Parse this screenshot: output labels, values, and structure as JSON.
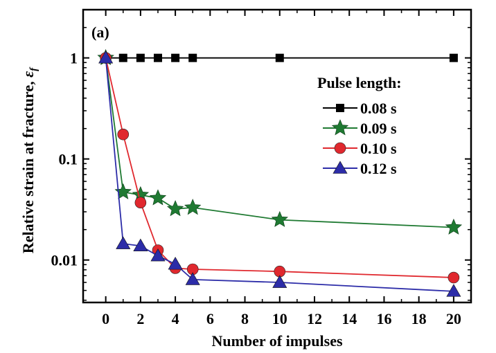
{
  "chart_data": {
    "type": "line",
    "panel_label": "(a)",
    "xlabel": "Number of impulses",
    "ylabel_main": "Relative strain at fracture, ",
    "ylabel_symbol": "ε",
    "ylabel_subscript": "f",
    "y_scale": "log",
    "xlim": [
      -1.3,
      21
    ],
    "ylim": [
      0.0038,
      3.0
    ],
    "x_ticks": [
      0,
      2,
      4,
      6,
      8,
      10,
      12,
      14,
      16,
      18,
      20
    ],
    "x_tick_labels": [
      "0",
      "2",
      "4",
      "6",
      "8",
      "10",
      "12",
      "14",
      "16",
      "18",
      "20"
    ],
    "y_ticks": [
      0.01,
      0.1,
      1
    ],
    "y_tick_labels": [
      "0.01",
      "0.1",
      "1"
    ],
    "legend_title": "Pulse length:",
    "legend_position": "right",
    "grid": false,
    "series": [
      {
        "name": "0.08 s",
        "color": "#000000",
        "marker": "square",
        "x": [
          0,
          1,
          2,
          3,
          4,
          5,
          10,
          20
        ],
        "y": [
          1,
          1,
          1,
          1,
          1,
          1,
          1,
          1
        ]
      },
      {
        "name": "0.09 s",
        "color": "#1f7a32",
        "marker": "star",
        "x": [
          0,
          1,
          2,
          3,
          4,
          5,
          10,
          20
        ],
        "y": [
          1,
          0.047,
          0.044,
          0.041,
          0.032,
          0.033,
          0.025,
          0.021
        ]
      },
      {
        "name": "0.10 s",
        "color": "#e0282e",
        "marker": "circle",
        "x": [
          0,
          1,
          2,
          3,
          4,
          5,
          10,
          20
        ],
        "y": [
          1,
          0.175,
          0.037,
          0.0125,
          0.0083,
          0.0081,
          0.0077,
          0.0067
        ]
      },
      {
        "name": "0.12 s",
        "color": "#2c2ca8",
        "marker": "triangle",
        "x": [
          0,
          1,
          2,
          3,
          4,
          5,
          10,
          20
        ],
        "y": [
          1,
          0.0145,
          0.0138,
          0.011,
          0.0091,
          0.0064,
          0.006,
          0.0049
        ]
      }
    ]
  }
}
